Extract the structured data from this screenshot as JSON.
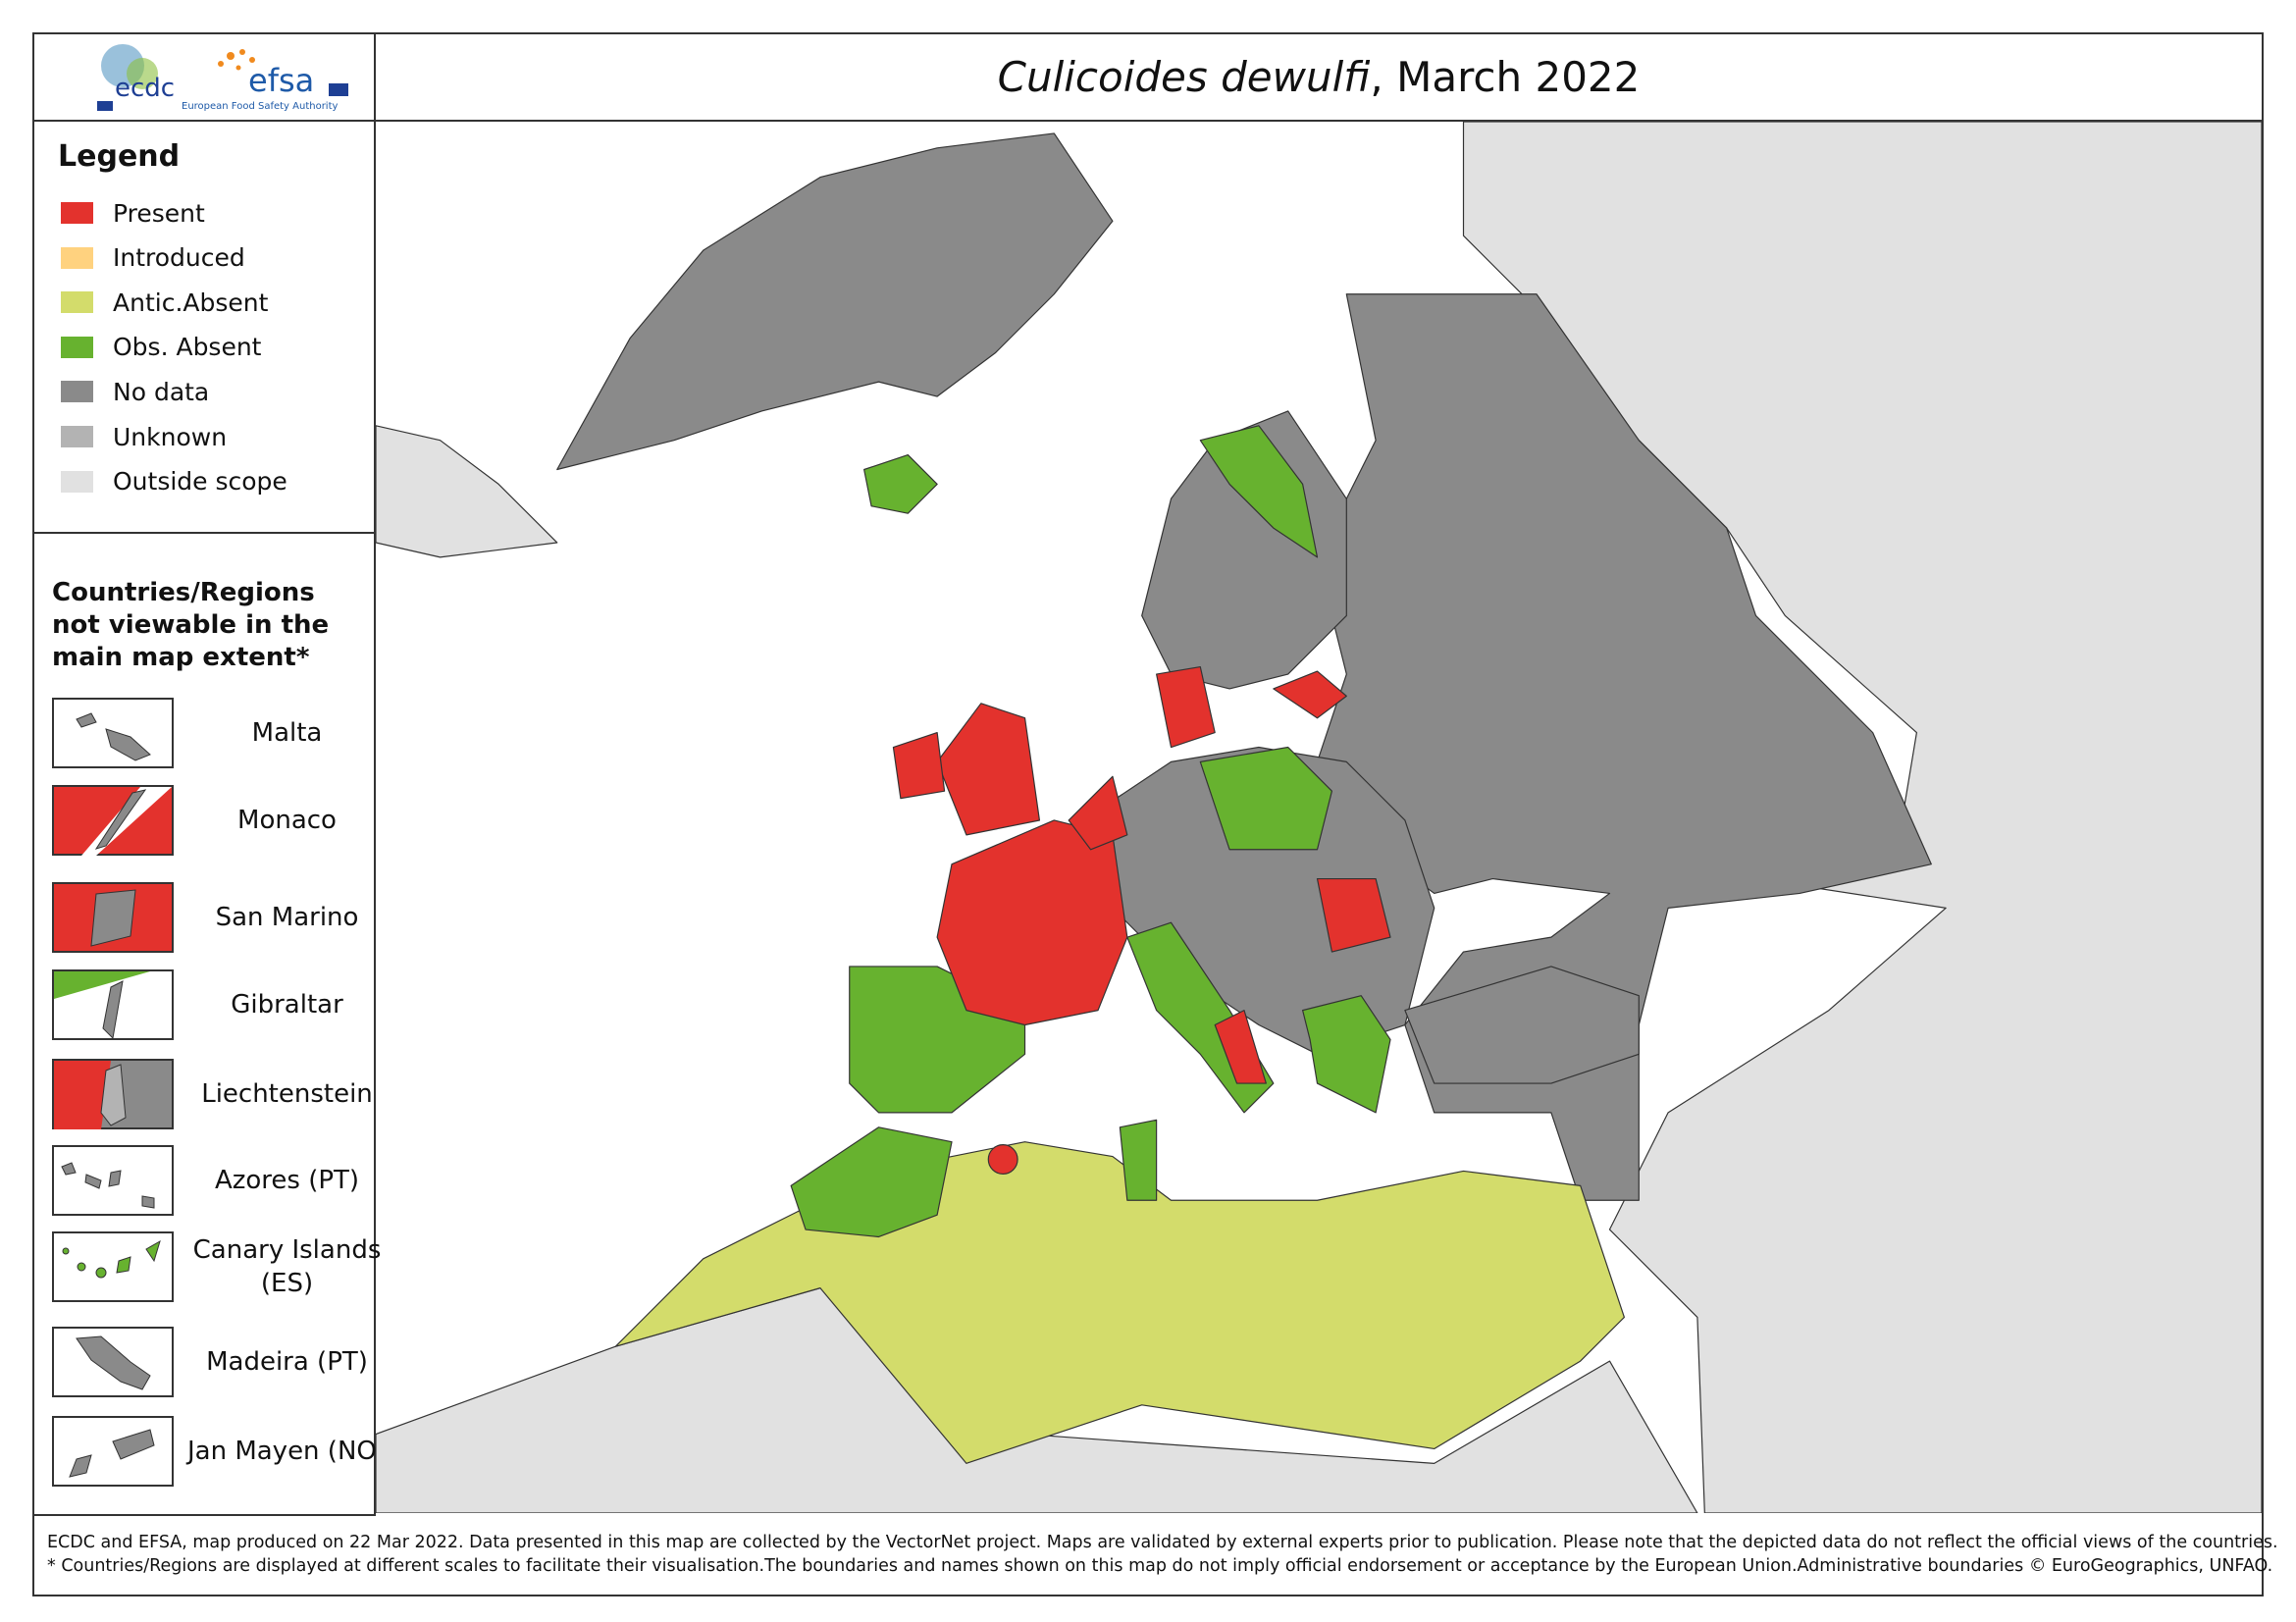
{
  "header": {
    "logos": {
      "ecdc": "ecdc",
      "efsa": "efsa",
      "efsa_full": "European Food Safety Authority"
    },
    "title_species": "Culicoides dewulfi",
    "title_rest": ", March 2022"
  },
  "legend": {
    "title": "Legend",
    "items": [
      {
        "label": "Present",
        "color": "#e3322d"
      },
      {
        "label": "Introduced",
        "color": "#ffd27f"
      },
      {
        "label": "Antic.Absent",
        "color": "#d3dc6b"
      },
      {
        "label": "Obs. Absent",
        "color": "#67b22f"
      },
      {
        "label": "No data",
        "color": "#8a8a8a"
      },
      {
        "label": "Unknown",
        "color": "#b3b3b3"
      },
      {
        "label": "Outside scope",
        "color": "#e1e1e1"
      }
    ]
  },
  "insets": {
    "title": "Countries/Regions not viewable in the main map extent*",
    "items": [
      "Malta",
      "Monaco",
      "San Marino",
      "Gibraltar",
      "Liechtenstein",
      "Azores (PT)",
      "Canary Islands (ES)",
      "Madeira (PT)",
      "Jan Mayen (NO)"
    ]
  },
  "footer": {
    "lines": [
      "ECDC and EFSA, map produced on 22 Mar 2022. Data presented in this map are collected by the VectorNet project. Maps are validated by external experts prior to publication. Please note that the depicted data do not reflect the official views of the countries.",
      "* Countries/Regions are displayed at different scales to facilitate their visualisation.The boundaries and names shown on this map do not imply official endorsement or acceptance by the European Union.Administrative boundaries © EuroGeographics, UNFAO."
    ]
  }
}
